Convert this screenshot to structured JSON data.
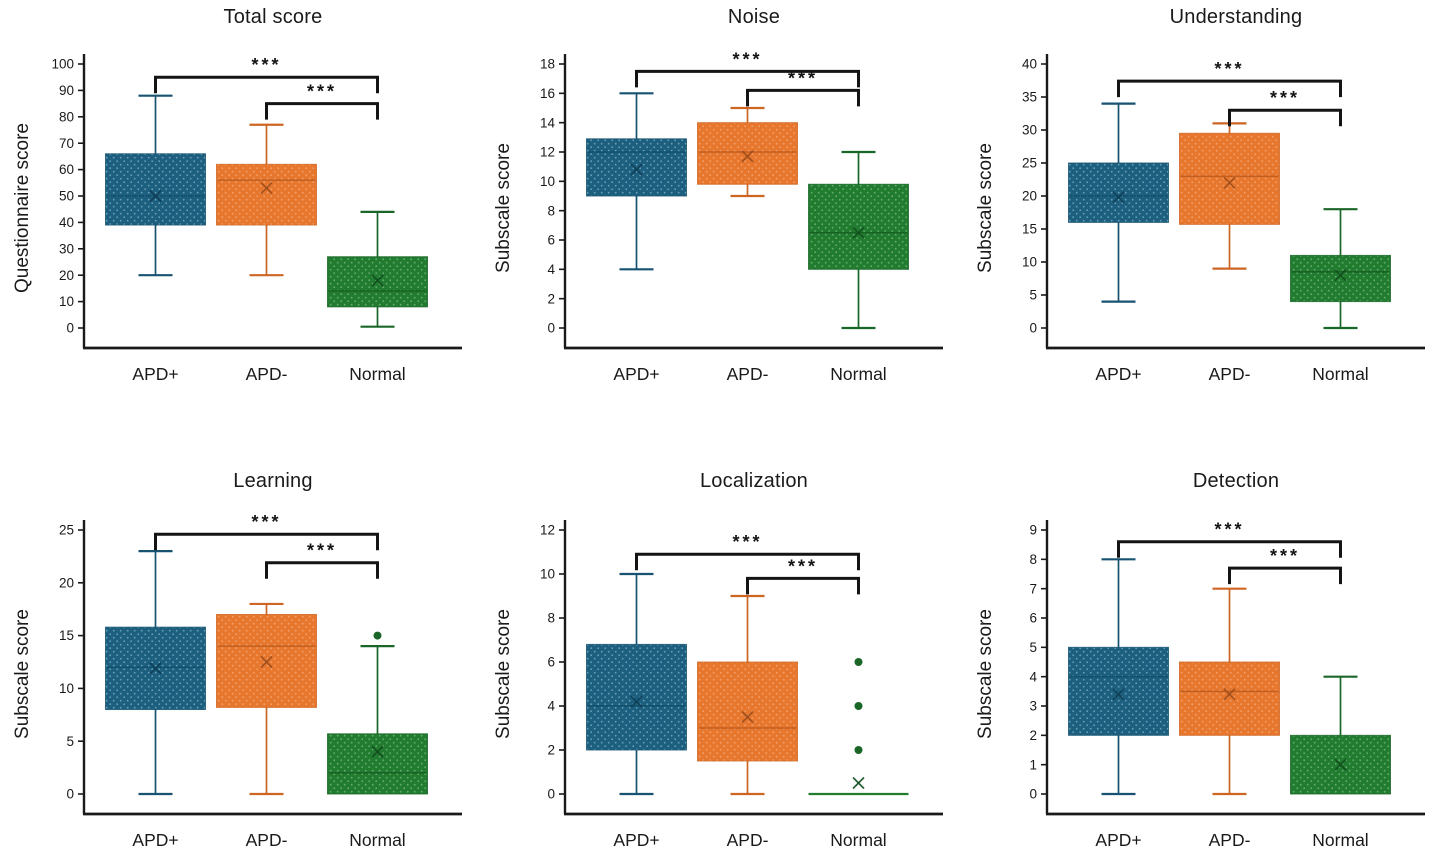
{
  "figure": {
    "background": "#ffffff",
    "axis_color": "#1a1a1a"
  },
  "groups": [
    {
      "label": "APD+",
      "fill": "#1D5F7F",
      "edge": "#175271",
      "median": "#12506B",
      "mean": "#0E3E54",
      "dot": "#86B9CD"
    },
    {
      "label": "APD-",
      "fill": "#E8772E",
      "edge": "#CE6522",
      "median": "#C05E20",
      "mean": "#9C4D1B",
      "dot": "#F5B183"
    },
    {
      "label": "Normal",
      "fill": "#217C30",
      "edge": "#1A6628",
      "median": "#176023",
      "mean": "#114D1C",
      "dot": "#82BF8E"
    }
  ],
  "significance_style": {
    "color": "#141414"
  },
  "chart_data": [
    {
      "id": "total-score",
      "type": "box",
      "title": "Total score",
      "ylabel": "Questionnaire  score",
      "ylim": [
        0,
        100
      ],
      "ytick_step": 10,
      "grid": false,
      "legend": "none",
      "categories": [
        "APD+",
        "APD-",
        "Normal"
      ],
      "boxes": [
        {
          "low": 20,
          "q1": 39,
          "median": 50,
          "mean": 50,
          "q3": 66,
          "high": 88,
          "outliers": []
        },
        {
          "low": 20,
          "q1": 39,
          "median": 56,
          "mean": 53,
          "q3": 62,
          "high": 77,
          "outliers": []
        },
        {
          "low": 0.5,
          "q1": 8,
          "median": 14,
          "mean": 18,
          "q3": 27,
          "high": 44,
          "outliers": []
        }
      ],
      "significance": [
        {
          "from": 0,
          "to": 2,
          "y": 95,
          "label": "***"
        },
        {
          "from": 1,
          "to": 2,
          "y": 85,
          "label": "***"
        }
      ]
    },
    {
      "id": "noise",
      "type": "box",
      "title": "Noise",
      "ylabel": "Subscale score",
      "ylim": [
        0,
        18
      ],
      "ytick_step": 2,
      "grid": false,
      "legend": "none",
      "categories": [
        "APD+",
        "APD-",
        "Normal"
      ],
      "boxes": [
        {
          "low": 4,
          "q1": 9,
          "median": 12,
          "mean": 10.8,
          "q3": 12.9,
          "high": 16,
          "outliers": []
        },
        {
          "low": 9,
          "q1": 9.8,
          "median": 12,
          "mean": 11.7,
          "q3": 14,
          "high": 15,
          "outliers": []
        },
        {
          "low": 0,
          "q1": 4,
          "median": 6.5,
          "mean": 6.5,
          "q3": 9.8,
          "high": 12,
          "outliers": []
        }
      ],
      "significance": [
        {
          "from": 0,
          "to": 2,
          "y": 17.5,
          "label": "***"
        },
        {
          "from": 1,
          "to": 2,
          "y": 16.2,
          "label": "***"
        }
      ]
    },
    {
      "id": "understanding",
      "type": "box",
      "title": "Understanding",
      "ylabel": "Subscale score",
      "ylim": [
        0,
        40
      ],
      "ytick_step": 5,
      "grid": false,
      "legend": "none",
      "categories": [
        "APD+",
        "APD-",
        "Normal"
      ],
      "boxes": [
        {
          "low": 4,
          "q1": 16,
          "median": 20,
          "mean": 19.8,
          "q3": 25,
          "high": 34,
          "outliers": []
        },
        {
          "low": 9,
          "q1": 15.7,
          "median": 23,
          "mean": 22,
          "q3": 29.5,
          "high": 31,
          "outliers": []
        },
        {
          "low": 0,
          "q1": 4,
          "median": 8.5,
          "mean": 8,
          "q3": 11,
          "high": 18,
          "outliers": []
        }
      ],
      "significance": [
        {
          "from": 0,
          "to": 2,
          "y": 37.4,
          "label": "***"
        },
        {
          "from": 1,
          "to": 2,
          "y": 33,
          "label": "***"
        }
      ]
    },
    {
      "id": "learning",
      "type": "box",
      "title": "Learning",
      "ylabel": "Subscale score",
      "ylim": [
        0,
        25
      ],
      "ytick_step": 5,
      "grid": false,
      "legend": "none",
      "categories": [
        "APD+",
        "APD-",
        "Normal"
      ],
      "boxes": [
        {
          "low": 0,
          "q1": 8,
          "median": 12,
          "mean": 11.9,
          "q3": 15.8,
          "high": 23,
          "outliers": []
        },
        {
          "low": 0,
          "q1": 8.2,
          "median": 14,
          "mean": 12.5,
          "q3": 17,
          "high": 18,
          "outliers": []
        },
        {
          "low": 0,
          "q1": 0,
          "median": 2,
          "mean": 4,
          "q3": 5.7,
          "high": 14,
          "outliers": [
            15
          ]
        }
      ],
      "significance": [
        {
          "from": 0,
          "to": 2,
          "y": 24.6,
          "label": "***"
        },
        {
          "from": 1,
          "to": 2,
          "y": 21.9,
          "label": "***"
        }
      ]
    },
    {
      "id": "localization",
      "type": "box",
      "title": "Localization",
      "ylabel": "Subscale score",
      "ylim": [
        0,
        12
      ],
      "ytick_step": 2,
      "grid": false,
      "legend": "none",
      "categories": [
        "APD+",
        "APD-",
        "Normal"
      ],
      "boxes": [
        {
          "low": 0,
          "q1": 2,
          "median": 4,
          "mean": 4.2,
          "q3": 6.8,
          "high": 10,
          "outliers": []
        },
        {
          "low": 0,
          "q1": 1.5,
          "median": 3,
          "mean": 3.5,
          "q3": 6,
          "high": 9,
          "outliers": []
        },
        {
          "low": 0,
          "q1": 0,
          "median": 0,
          "mean": 0.5,
          "q3": 0,
          "high": 0,
          "outliers": [
            2,
            4,
            6
          ]
        }
      ],
      "significance": [
        {
          "from": 0,
          "to": 2,
          "y": 10.9,
          "label": "***"
        },
        {
          "from": 1,
          "to": 2,
          "y": 9.8,
          "label": "***"
        }
      ]
    },
    {
      "id": "detection",
      "type": "box",
      "title": "Detection",
      "ylabel": "Subscale score",
      "ylim": [
        0,
        9
      ],
      "ytick_step": 1,
      "grid": false,
      "legend": "none",
      "categories": [
        "APD+",
        "APD-",
        "Normal"
      ],
      "boxes": [
        {
          "low": 0,
          "q1": 2,
          "median": 4,
          "mean": 3.4,
          "q3": 5,
          "high": 8,
          "outliers": []
        },
        {
          "low": 0,
          "q1": 2,
          "median": 3.5,
          "mean": 3.4,
          "q3": 4.5,
          "high": 7,
          "outliers": []
        },
        {
          "low": 0,
          "q1": 0,
          "median": 0,
          "mean": 1,
          "q3": 2,
          "high": 4,
          "outliers": []
        }
      ],
      "significance": [
        {
          "from": 0,
          "to": 2,
          "y": 8.6,
          "label": "***"
        },
        {
          "from": 1,
          "to": 2,
          "y": 7.7,
          "label": "***"
        }
      ]
    }
  ]
}
